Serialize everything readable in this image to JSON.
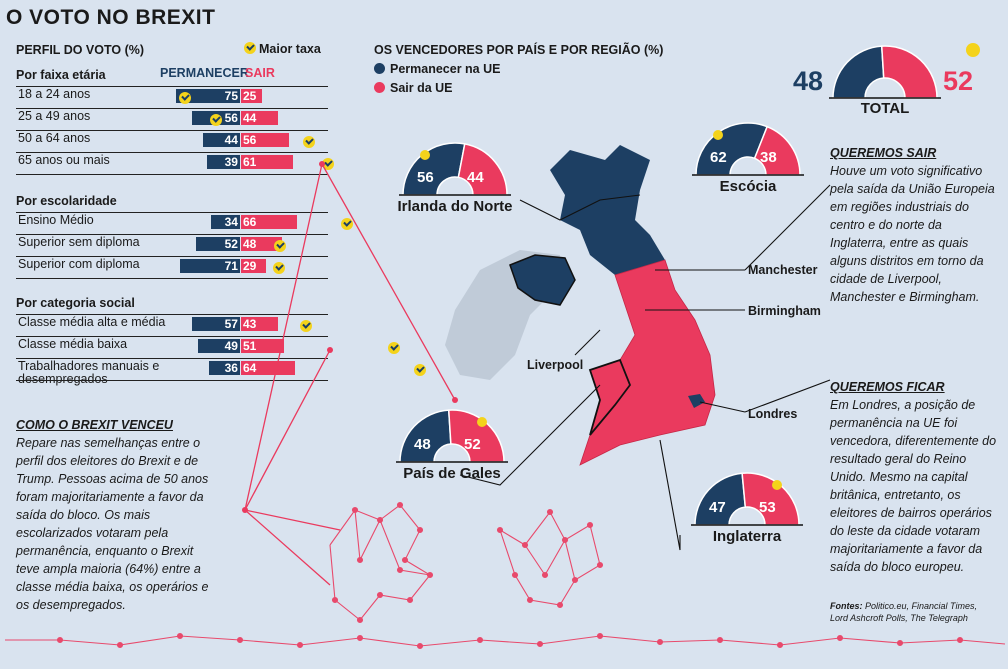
{
  "title": "O VOTO NO BREXIT",
  "profile": {
    "heading": "PERFIL DO VOTO (%)",
    "legend_label": "Maior taxa",
    "col_remain": "PERMANECER",
    "col_leave": "SAIR"
  },
  "map": {
    "heading": "OS VENCEDORES POR PAÍS E POR REGIÃO (%)",
    "legend_remain": "Permanecer na UE",
    "legend_leave": "Sair da UE",
    "cities": [
      "Manchester",
      "Birmingham",
      "Liverpool",
      "Londres"
    ]
  },
  "quote_leave": {
    "title": "QUEREMOS SAIR",
    "body": "Houve um voto significativo pela saída da União Europeia em regiões industriais do centro e do norte da Inglaterra, entre as quais alguns distritos em torno da cidade de Liverpool, Manchester e Birmingham."
  },
  "quote_remain": {
    "title": "QUEREMOS FICAR",
    "body": "Em Londres, a posição de permanência na UE foi vencedora, diferentemente do resultado geral do Reino Unido. Mesmo na capital britânica, entretanto, os eleitores de bairros operários do leste da cidade votaram majoritariamente a favor da saída do bloco europeu."
  },
  "how_won": {
    "title": "COMO O BREXIT VENCEU",
    "body": "Repare nas semelhanças entre o perfil dos eleitores do Brexit e de Trump. Pessoas acima de 50 anos foram majoritariamente a favor da saída do bloco. Os mais escolarizados votaram pela permanência, enquanto o Brexit teve ampla maioria (64%) entre a classe média baixa, os operários e os desempregados."
  },
  "sources": {
    "label": "Fontes:",
    "line1": "Politico.eu, Financial Times,",
    "line2": "Lord Ashcroft Polls, The Telegraph"
  },
  "colors": {
    "remain": "#1d3f63",
    "leave": "#ea3a5e",
    "check": "#f4d31b",
    "ireland": "#c0cbd8"
  },
  "chart_data": [
    {
      "type": "bar",
      "title": "Por faixa etária",
      "categories": [
        "18 a 24 anos",
        "25 a 49 anos",
        "50 a 64 anos",
        "65  anos ou mais"
      ],
      "series": [
        {
          "name": "PERMANECER",
          "values": [
            75,
            56,
            44,
            39
          ]
        },
        {
          "name": "SAIR",
          "values": [
            25,
            44,
            56,
            61
          ]
        }
      ]
    },
    {
      "type": "bar",
      "title": "Por escolaridade",
      "categories": [
        "Ensino Médio",
        "Superior sem diploma",
        "Superior com diploma"
      ],
      "series": [
        {
          "name": "PERMANECER",
          "values": [
            34,
            52,
            71
          ]
        },
        {
          "name": "SAIR",
          "values": [
            66,
            48,
            29
          ]
        }
      ]
    },
    {
      "type": "bar",
      "title": "Por categoria social",
      "categories": [
        "Classe média alta e média",
        "Classe média baixa",
        "Trabalhadores manuais e desempregados"
      ],
      "series": [
        {
          "name": "PERMANECER",
          "values": [
            57,
            49,
            36
          ]
        },
        {
          "name": "SAIR",
          "values": [
            43,
            51,
            64
          ]
        }
      ]
    },
    {
      "type": "pie",
      "title": "TOTAL",
      "categories": [
        "Permanecer na UE",
        "Sair da UE"
      ],
      "values": [
        48,
        52
      ]
    },
    {
      "type": "pie",
      "title": "Irlanda do Norte",
      "categories": [
        "Permanecer na UE",
        "Sair da UE"
      ],
      "values": [
        56,
        44
      ]
    },
    {
      "type": "pie",
      "title": "Escócia",
      "categories": [
        "Permanecer na UE",
        "Sair da UE"
      ],
      "values": [
        62,
        38
      ]
    },
    {
      "type": "pie",
      "title": "País de Gales",
      "categories": [
        "Permanecer na UE",
        "Sair da UE"
      ],
      "values": [
        48,
        52
      ]
    },
    {
      "type": "pie",
      "title": "Inglaterra",
      "categories": [
        "Permanecer na UE",
        "Sair da UE"
      ],
      "values": [
        47,
        53
      ]
    }
  ]
}
